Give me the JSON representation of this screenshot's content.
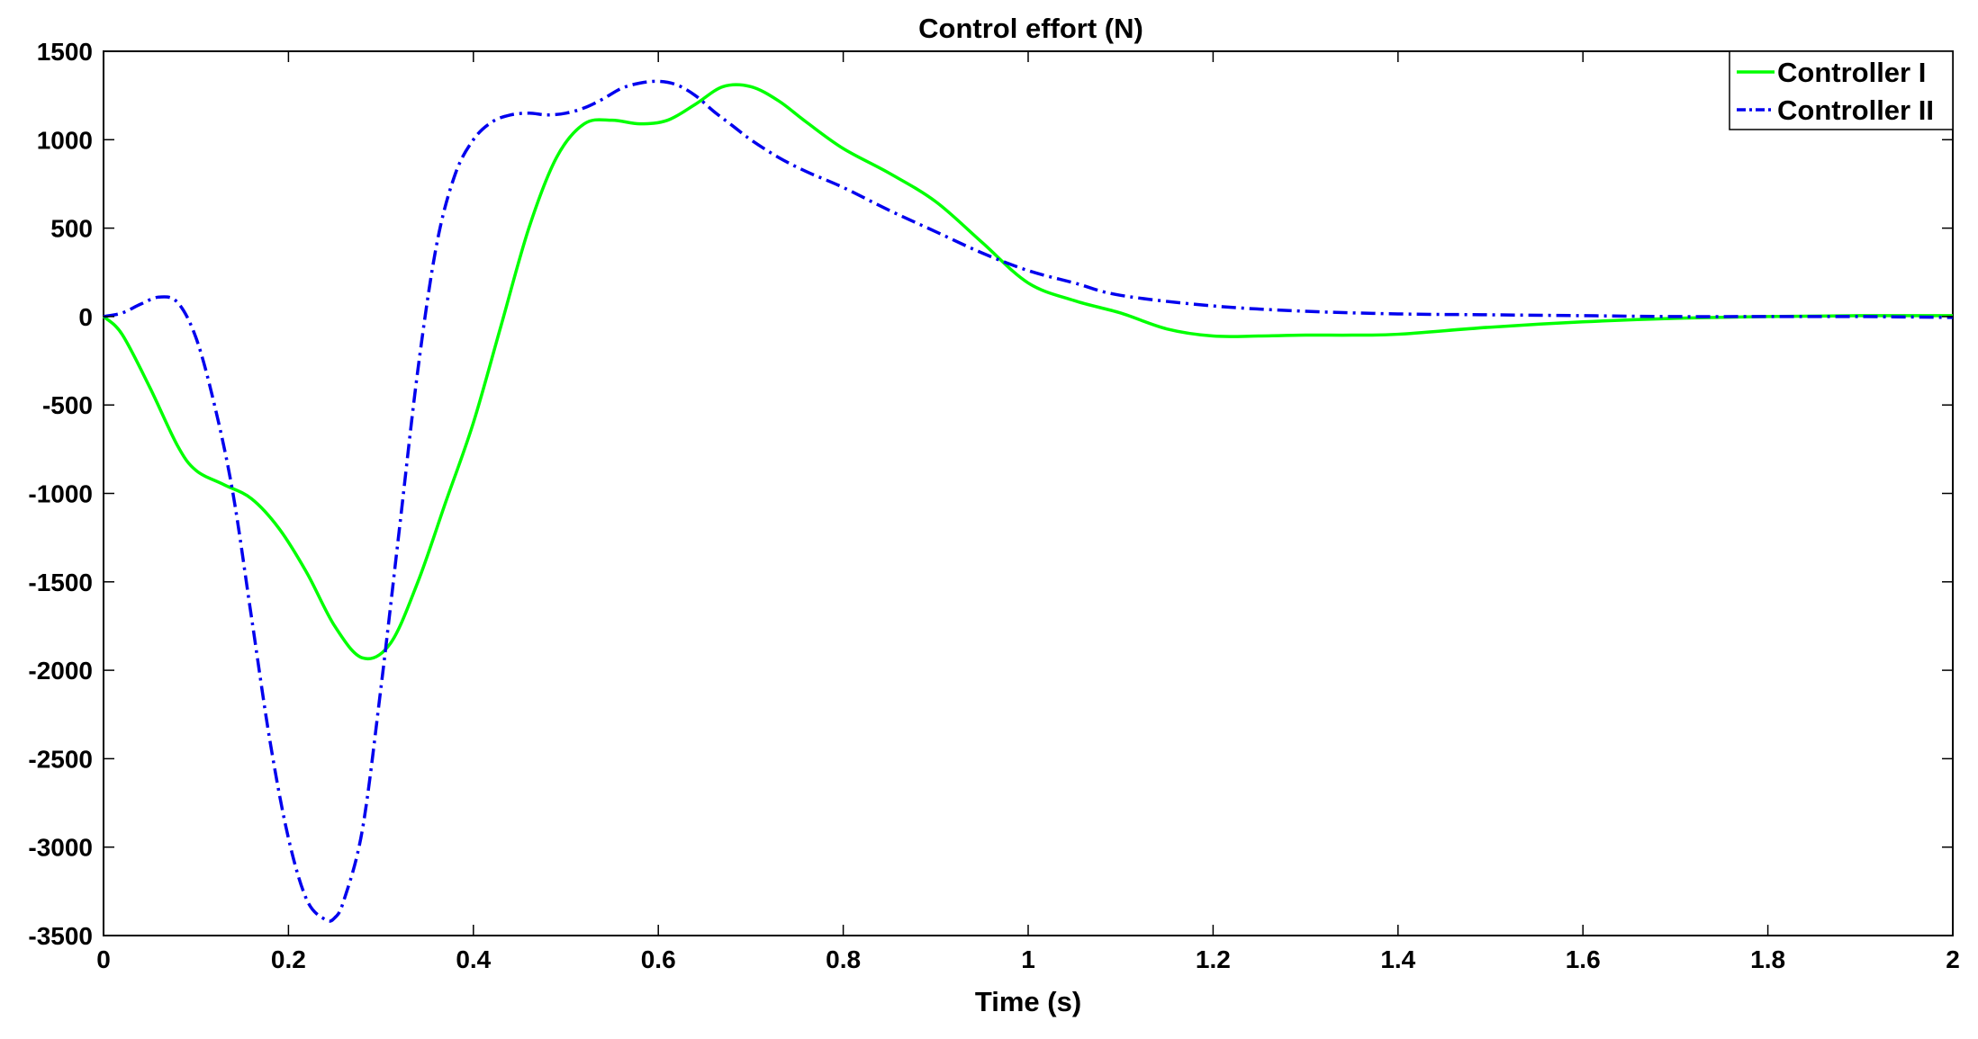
{
  "chart_data": {
    "type": "line",
    "title": "Control effort (N)",
    "xlabel": "Time (s)",
    "ylabel": "",
    "xlim": [
      0,
      2
    ],
    "ylim": [
      -3500,
      1500
    ],
    "xticks": [
      0,
      0.2,
      0.4,
      0.6,
      0.8,
      1,
      1.2,
      1.4,
      1.6,
      1.8,
      2
    ],
    "xtick_labels": [
      "0",
      "0.2",
      "0.4",
      "0.6",
      "0.8",
      "1",
      "1.2",
      "1.4",
      "1.6",
      "1.8",
      "2"
    ],
    "yticks": [
      1500,
      1000,
      500,
      0,
      -500,
      -1000,
      -1500,
      -2000,
      -2500,
      -3000,
      -3500
    ],
    "ytick_labels": [
      "1500",
      "1000",
      "500",
      "0",
      "-500",
      "-1000",
      "-1500",
      "-2000",
      "-2500",
      "-3000",
      "-3500"
    ],
    "grid": false,
    "legend_position": "top-right",
    "series": [
      {
        "name": "Controller I",
        "color": "#00ff00",
        "line_style": "solid",
        "x": [
          0,
          0.02,
          0.05,
          0.08,
          0.1,
          0.13,
          0.16,
          0.19,
          0.22,
          0.25,
          0.28,
          0.31,
          0.34,
          0.37,
          0.4,
          0.43,
          0.46,
          0.49,
          0.52,
          0.55,
          0.58,
          0.61,
          0.64,
          0.67,
          0.7,
          0.73,
          0.76,
          0.8,
          0.85,
          0.9,
          0.95,
          1.0,
          1.05,
          1.1,
          1.15,
          1.2,
          1.25,
          1.3,
          1.35,
          1.4,
          1.5,
          1.6,
          1.7,
          1.8,
          1.9,
          2.0
        ],
        "y": [
          0,
          -100,
          -400,
          -730,
          -870,
          -950,
          -1030,
          -1200,
          -1450,
          -1750,
          -1930,
          -1850,
          -1500,
          -1050,
          -600,
          -50,
          500,
          900,
          1090,
          1110,
          1090,
          1110,
          1200,
          1300,
          1300,
          1220,
          1100,
          950,
          810,
          650,
          420,
          190,
          90,
          20,
          -70,
          -110,
          -110,
          -105,
          -105,
          -100,
          -60,
          -30,
          -10,
          0,
          5,
          5
        ]
      },
      {
        "name": "Controller II",
        "color": "#0000ee",
        "line_style": "dash-dot",
        "x": [
          0,
          0.02,
          0.04,
          0.06,
          0.08,
          0.1,
          0.12,
          0.14,
          0.16,
          0.18,
          0.2,
          0.22,
          0.24,
          0.25,
          0.26,
          0.28,
          0.3,
          0.32,
          0.34,
          0.36,
          0.38,
          0.4,
          0.42,
          0.44,
          0.46,
          0.48,
          0.5,
          0.52,
          0.54,
          0.56,
          0.58,
          0.6,
          0.62,
          0.64,
          0.66,
          0.68,
          0.7,
          0.73,
          0.76,
          0.8,
          0.85,
          0.9,
          0.95,
          1.0,
          1.05,
          1.1,
          1.2,
          1.3,
          1.4,
          1.5,
          1.6,
          1.7,
          1.8,
          1.9,
          2.0
        ],
        "y": [
          0,
          20,
          70,
          110,
          80,
          -120,
          -500,
          -1000,
          -1700,
          -2400,
          -2950,
          -3300,
          -3410,
          -3400,
          -3300,
          -2900,
          -2100,
          -1200,
          -300,
          400,
          800,
          1000,
          1100,
          1140,
          1150,
          1140,
          1150,
          1180,
          1230,
          1290,
          1320,
          1330,
          1310,
          1250,
          1160,
          1080,
          1000,
          900,
          820,
          730,
          600,
          480,
          360,
          260,
          190,
          120,
          60,
          30,
          15,
          10,
          5,
          0,
          0,
          0,
          -5
        ]
      }
    ]
  }
}
